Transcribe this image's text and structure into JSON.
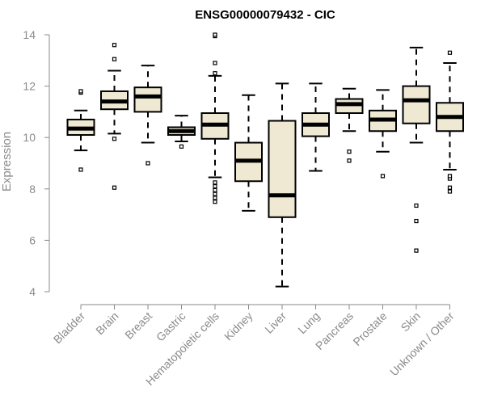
{
  "chart_data": {
    "type": "boxplot",
    "title": "ENSG00000079432 - CIC",
    "ylabel": "Expression",
    "xlabel": "",
    "ylim": [
      4,
      14
    ],
    "yticks": [
      4,
      6,
      8,
      10,
      12,
      14
    ],
    "box_fill": "#efe9d3",
    "box_stroke": "#000000",
    "categories": [
      "Bladder",
      "Brain",
      "Breast",
      "Gastric",
      "Hematopoietic cells",
      "Kidney",
      "Liver",
      "Lung",
      "Pancreas",
      "Prostate",
      "Skin",
      "Unknown / Other"
    ],
    "boxes": [
      {
        "q1": 10.1,
        "median": 10.35,
        "q3": 10.7,
        "whisker_low": 9.5,
        "whisker_high": 11.05,
        "outliers": [
          8.75,
          11.75,
          11.8
        ]
      },
      {
        "q1": 11.1,
        "median": 11.4,
        "q3": 11.8,
        "whisker_low": 10.15,
        "whisker_high": 12.6,
        "outliers": [
          8.05,
          9.95,
          13.05,
          13.6
        ]
      },
      {
        "q1": 11.0,
        "median": 11.6,
        "q3": 11.95,
        "whisker_low": 9.8,
        "whisker_high": 12.8,
        "outliers": [
          9.0
        ]
      },
      {
        "q1": 10.1,
        "median": 10.25,
        "q3": 10.4,
        "whisker_low": 9.85,
        "whisker_high": 10.85,
        "outliers": [
          9.65
        ]
      },
      {
        "q1": 9.95,
        "median": 10.5,
        "q3": 10.95,
        "whisker_low": 8.45,
        "whisker_high": 12.4,
        "outliers": [
          7.5,
          7.65,
          7.8,
          7.95,
          8.1,
          8.25,
          12.5,
          12.9,
          13.95,
          14.0
        ]
      },
      {
        "q1": 8.3,
        "median": 9.1,
        "q3": 9.8,
        "whisker_low": 7.15,
        "whisker_high": 11.65,
        "outliers": []
      },
      {
        "q1": 6.9,
        "median": 7.75,
        "q3": 10.65,
        "whisker_low": 4.2,
        "whisker_high": 12.1,
        "outliers": []
      },
      {
        "q1": 10.05,
        "median": 10.5,
        "q3": 10.95,
        "whisker_low": 8.7,
        "whisker_high": 12.1,
        "outliers": []
      },
      {
        "q1": 10.95,
        "median": 11.3,
        "q3": 11.5,
        "whisker_low": 10.25,
        "whisker_high": 11.9,
        "outliers": [
          9.1,
          9.45
        ]
      },
      {
        "q1": 10.25,
        "median": 10.7,
        "q3": 11.05,
        "whisker_low": 9.45,
        "whisker_high": 11.85,
        "outliers": [
          8.5
        ]
      },
      {
        "q1": 10.55,
        "median": 11.45,
        "q3": 12.0,
        "whisker_low": 9.8,
        "whisker_high": 13.5,
        "outliers": [
          5.6,
          6.75,
          7.35
        ]
      },
      {
        "q1": 10.25,
        "median": 10.8,
        "q3": 11.35,
        "whisker_low": 8.75,
        "whisker_high": 12.9,
        "outliers": [
          7.9,
          8.05,
          8.4,
          8.5,
          13.3
        ]
      }
    ]
  }
}
